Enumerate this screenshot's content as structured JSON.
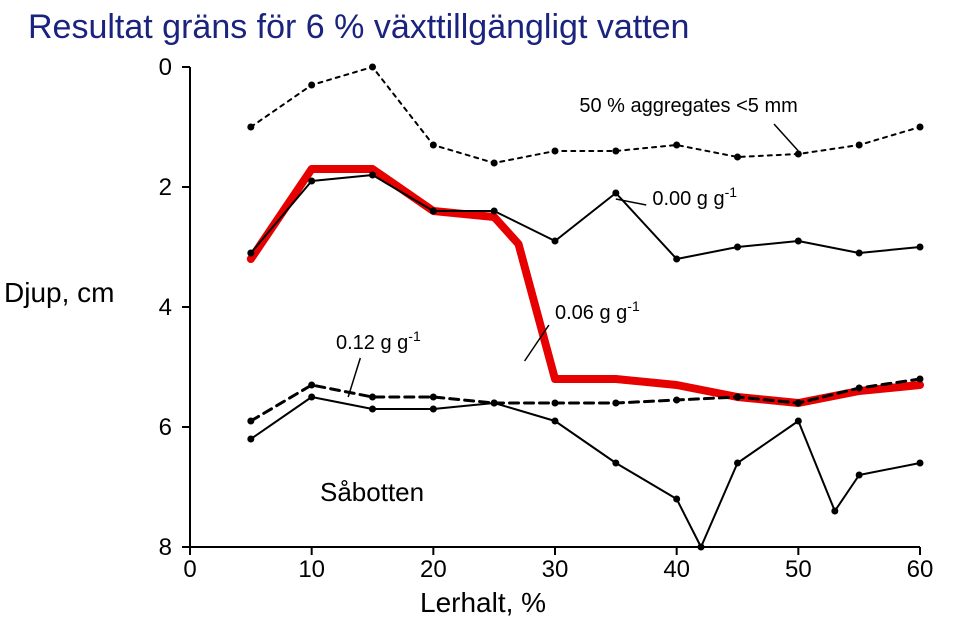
{
  "title": "Resultat gräns för 6 % växttillgängligt vatten",
  "axis": {
    "y_label": "Djup, cm",
    "x_label": "Lerhalt, %",
    "overlay_label": "Såbotten",
    "x_min": 0,
    "x_max": 60,
    "y_min": 0,
    "y_max": 8,
    "x_ticks": [
      0,
      10,
      20,
      30,
      40,
      50,
      60
    ],
    "y_ticks": [
      0,
      2,
      4,
      6,
      8
    ]
  },
  "annotations": {
    "agg": "50 % aggregates <5 mm",
    "a00": "0.00 g g",
    "a06": "0.06 g g",
    "a12": "0.12 g g",
    "sup": "-1"
  },
  "colors": {
    "line_black": "#000000",
    "line_red": "#e60000",
    "bg": "#ffffff"
  },
  "series": {
    "aggregates": {
      "style": "dashed_fine",
      "width": 2,
      "points": [
        [
          5,
          1.0
        ],
        [
          10,
          0.3
        ],
        [
          15,
          0.0
        ],
        [
          20,
          1.3
        ],
        [
          25,
          1.6
        ],
        [
          30,
          1.4
        ],
        [
          35,
          1.4
        ],
        [
          40,
          1.3
        ],
        [
          45,
          1.5
        ],
        [
          50,
          1.45
        ],
        [
          55,
          1.3
        ],
        [
          60,
          1.0
        ]
      ]
    },
    "zero_gg": {
      "style": "solid",
      "width": 2,
      "points": [
        [
          5,
          3.1
        ],
        [
          10,
          1.9
        ],
        [
          15,
          1.8
        ],
        [
          20,
          2.4
        ],
        [
          25,
          2.4
        ],
        [
          30,
          2.9
        ],
        [
          35,
          2.1
        ],
        [
          40,
          3.2
        ],
        [
          45,
          3.0
        ],
        [
          50,
          2.9
        ],
        [
          55,
          3.1
        ],
        [
          60,
          3.0
        ]
      ]
    },
    "red_006": {
      "style": "solid_red",
      "width": 8,
      "points": [
        [
          5,
          3.2
        ],
        [
          10,
          1.7
        ],
        [
          15,
          1.7
        ],
        [
          20,
          2.4
        ],
        [
          25,
          2.5
        ],
        [
          27,
          2.95
        ],
        [
          30,
          5.2
        ],
        [
          35,
          5.2
        ],
        [
          40,
          5.3
        ],
        [
          45,
          5.5
        ],
        [
          50,
          5.6
        ],
        [
          55,
          5.4
        ],
        [
          60,
          5.3
        ]
      ]
    },
    "sabotten": {
      "style": "dashed_coarse",
      "width": 3,
      "points": [
        [
          5,
          5.9
        ],
        [
          10,
          5.3
        ],
        [
          15,
          5.5
        ],
        [
          20,
          5.5
        ],
        [
          25,
          5.6
        ],
        [
          30,
          5.6
        ],
        [
          35,
          5.6
        ],
        [
          40,
          5.55
        ],
        [
          45,
          5.5
        ],
        [
          50,
          5.6
        ],
        [
          55,
          5.35
        ],
        [
          60,
          5.2
        ]
      ]
    },
    "twelve_gg": {
      "style": "solid",
      "width": 2,
      "points": [
        [
          5,
          6.2
        ],
        [
          10,
          5.5
        ],
        [
          15,
          5.7
        ],
        [
          20,
          5.7
        ],
        [
          25,
          5.6
        ],
        [
          30,
          5.9
        ],
        [
          35,
          6.6
        ],
        [
          40,
          7.2
        ],
        [
          42,
          8.0
        ],
        [
          45,
          6.6
        ],
        [
          50,
          5.9
        ],
        [
          53,
          7.4
        ],
        [
          55,
          6.8
        ],
        [
          60,
          6.6
        ]
      ]
    }
  }
}
